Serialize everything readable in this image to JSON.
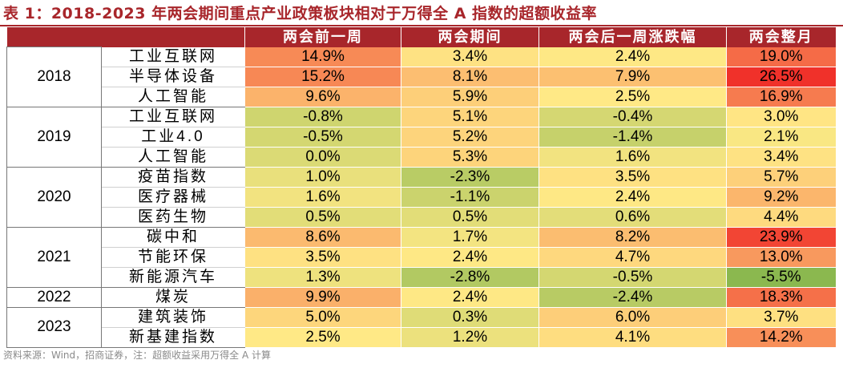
{
  "title": "表 1：2018-2023 年两会期间重点产业政策板块相对于万得全 A 指数的超额收益率",
  "columns": [
    "两会前一周",
    "两会期间",
    "两会后一周涨跌幅",
    "两会整月"
  ],
  "groups": [
    {
      "year": "2018",
      "rows": [
        {
          "sector": "工业互联网",
          "values": [
            "14.9%",
            "3.4%",
            "2.4%",
            "19.0%"
          ]
        },
        {
          "sector": "半导体设备",
          "values": [
            "15.2%",
            "8.1%",
            "7.9%",
            "26.5%"
          ]
        },
        {
          "sector": "人工智能",
          "values": [
            "9.6%",
            "5.9%",
            "2.5%",
            "16.9%"
          ]
        }
      ]
    },
    {
      "year": "2019",
      "rows": [
        {
          "sector": "工业互联网",
          "values": [
            "-0.8%",
            "5.1%",
            "-0.4%",
            "3.0%"
          ]
        },
        {
          "sector": "工业4.0",
          "values": [
            "-0.5%",
            "5.2%",
            "-1.4%",
            "2.1%"
          ]
        },
        {
          "sector": "人工智能",
          "values": [
            "0.0%",
            "5.3%",
            "1.6%",
            "3.4%"
          ]
        }
      ]
    },
    {
      "year": "2020",
      "rows": [
        {
          "sector": "疫苗指数",
          "values": [
            "1.0%",
            "-2.3%",
            "3.5%",
            "5.7%"
          ]
        },
        {
          "sector": "医疗器械",
          "values": [
            "1.6%",
            "-1.1%",
            "2.4%",
            "9.2%"
          ]
        },
        {
          "sector": "医药生物",
          "values": [
            "0.5%",
            "0.5%",
            "0.6%",
            "4.4%"
          ]
        }
      ]
    },
    {
      "year": "2021",
      "rows": [
        {
          "sector": "碳中和",
          "values": [
            "8.6%",
            "1.7%",
            "8.2%",
            "23.9%"
          ]
        },
        {
          "sector": "节能环保",
          "values": [
            "3.5%",
            "2.4%",
            "4.7%",
            "13.0%"
          ]
        },
        {
          "sector": "新能源汽车",
          "values": [
            "1.3%",
            "-2.8%",
            "-0.5%",
            "-5.5%"
          ]
        }
      ]
    },
    {
      "year": "2022",
      "rows": [
        {
          "sector": "煤炭",
          "values": [
            "9.9%",
            "2.4%",
            "-2.4%",
            "18.3%"
          ]
        }
      ]
    },
    {
      "year": "2023",
      "rows": [
        {
          "sector": "建筑装饰",
          "values": [
            "5.0%",
            "0.3%",
            "6.0%",
            "3.7%"
          ]
        },
        {
          "sector": "新基建指数",
          "values": [
            "2.5%",
            "1.2%",
            "4.1%",
            "14.2%"
          ]
        }
      ]
    }
  ],
  "source": "资料来源：Wind，招商证券，注：超额收益采用万得全 A 计算",
  "colors": {
    "title": "#a8262b",
    "header_bg": "#a8262b",
    "scale_low": "#8bb84f",
    "scale_mid": "#ffe986",
    "scale_high": "#f0312a"
  }
}
